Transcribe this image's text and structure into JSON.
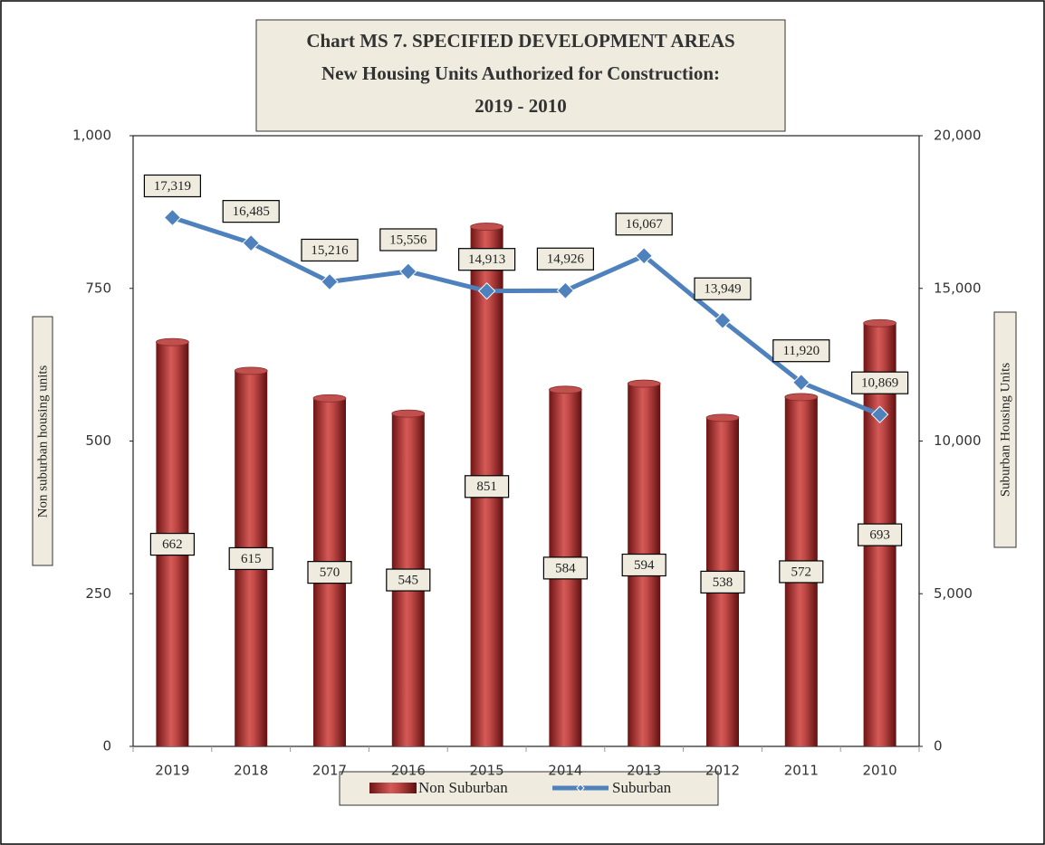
{
  "chart_data": {
    "type": "bar_line",
    "title": [
      "Chart MS 7. SPECIFIED DEVELOPMENT AREAS",
      "New Housing Units Authorized for Construction:",
      "2019 - 2010"
    ],
    "y_label": "Non suburban housing units",
    "y2_label": "Suburban Housing Units",
    "categories": [
      "2019",
      "2018",
      "2017",
      "2016",
      "2015",
      "2014",
      "2013",
      "2012",
      "2011",
      "2010"
    ],
    "series": [
      {
        "name": "Non Suburban",
        "color": "#c0504d",
        "type": "bar",
        "axis": "y",
        "values": [
          662,
          615,
          570,
          545,
          851,
          584,
          594,
          538,
          572,
          693
        ]
      },
      {
        "name": "Suburban",
        "color": "#4f81bd",
        "type": "line",
        "axis": "y2",
        "values": [
          17319,
          16485,
          15216,
          15556,
          14913,
          14926,
          16067,
          13949,
          11920,
          10869
        ],
        "value_labels": [
          "17,319",
          "16,485",
          "15,216",
          "15,556",
          "14,913",
          "14,926",
          "16,067",
          "13,949",
          "11,920",
          "10,869"
        ]
      }
    ],
    "ylim": [
      0,
      1000
    ],
    "yticks": [
      0,
      250,
      500,
      750,
      {
        "value": 1000,
        "label": "1,000"
      }
    ],
    "y2lim": [
      0,
      20000
    ],
    "y2ticks": [
      0,
      {
        "value": 5000,
        "label": "5,000"
      },
      {
        "value": 10000,
        "label": "10,000"
      },
      {
        "value": 15000,
        "label": "15,000"
      },
      {
        "value": 20000,
        "label": "20,000"
      }
    ],
    "legend": "bottom"
  }
}
